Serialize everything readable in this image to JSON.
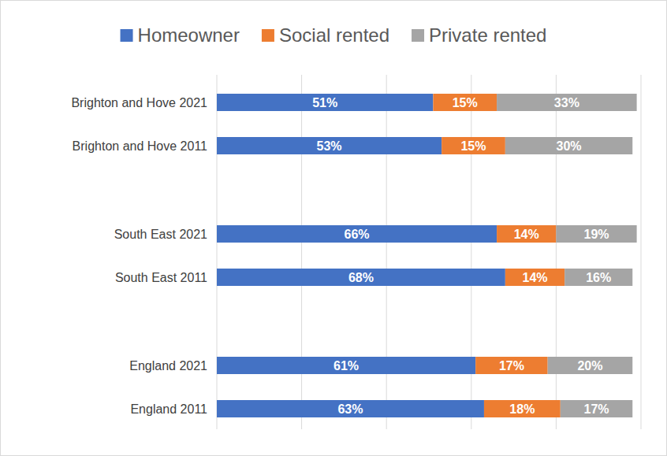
{
  "chart_data": {
    "type": "bar",
    "orientation": "horizontal",
    "stacked": true,
    "data_labels": true,
    "grid": true,
    "legend": "top",
    "tick_labels": "y",
    "categories": [
      "Brighton and Hove 2021",
      "Brighton and Hove 2011",
      "South East 2021",
      "South East 2011",
      "England 2021",
      "England 2011"
    ],
    "xlim": [
      0,
      100
    ],
    "xticks": [
      0,
      20,
      40,
      60,
      80,
      100
    ],
    "series": [
      {
        "name": "Homeowner",
        "color": "#4472c4",
        "values": [
          51,
          53,
          66,
          68,
          61,
          63
        ],
        "value_labels": [
          "51%",
          "53%",
          "66%",
          "68%",
          "61%",
          "63%"
        ]
      },
      {
        "name": "Social rented",
        "color": "#ed7d31",
        "values": [
          15,
          15,
          14,
          14,
          17,
          18
        ],
        "value_labels": [
          "15%",
          "15%",
          "14%",
          "14%",
          "17%",
          "18%"
        ]
      },
      {
        "name": "Private rented",
        "color": "#a5a5a5",
        "values": [
          33,
          30,
          19,
          16,
          20,
          17
        ],
        "value_labels": [
          "33%",
          "30%",
          "19%",
          "16%",
          "20%",
          "17%"
        ]
      }
    ]
  }
}
